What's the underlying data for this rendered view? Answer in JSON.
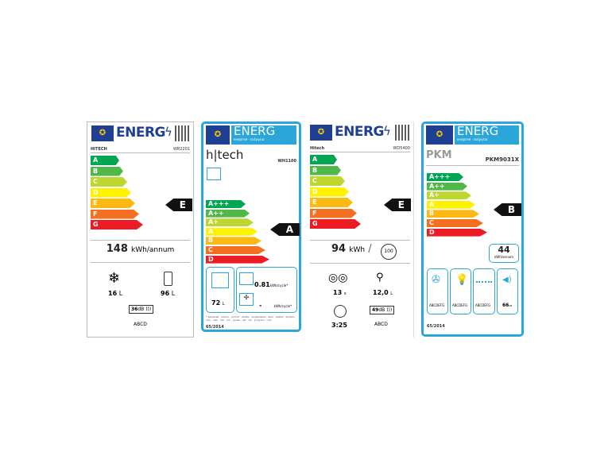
{
  "scale_colors": [
    "#00a651",
    "#50b848",
    "#bed630",
    "#fff200",
    "#fdb913",
    "#f37021",
    "#ed1c24"
  ],
  "labels": [
    {
      "energy_word": "ENERG",
      "brand": "HITECH",
      "model": "WR2201",
      "classes": [
        "A",
        "B",
        "C",
        "D",
        "E",
        "F",
        "G"
      ],
      "rating": "E",
      "consumption": "148",
      "consumption_unit": "kWh/annum",
      "freezer_volume": "16",
      "fridge_volume": "96",
      "volume_unit": "L",
      "noise": "36",
      "noise_unit": "dB",
      "noise_class": "ABCD"
    },
    {
      "energy_word": "ENERG",
      "energy_sub": "енергия · ενέργεια",
      "brand": "h|tech",
      "model": "WH1100",
      "classes": [
        "A+++",
        "A++",
        "A+",
        "A",
        "B",
        "C",
        "D"
      ],
      "rating": "A",
      "volume": "72",
      "volume_unit": "L",
      "conv_consumption": "0.81",
      "conv_unit": "kWh/cycle*",
      "fan_consumption": "-",
      "fan_unit": "kWh/cycle*",
      "footnote": "* ўдзіркай · ωείκεν · pomoč · αρίθω · ηρηφραφραι · вімс · watter · ekiptoo · olóu · sikn · dec · kiri · syslas · saf · raz · program · cakl",
      "regulation": "65/2014"
    },
    {
      "energy_word": "ENERG",
      "brand": "Hitech",
      "model": "WD5400",
      "classes": [
        "A",
        "B",
        "C",
        "D",
        "E",
        "F",
        "G"
      ],
      "rating": "E",
      "consumption": "94",
      "consumption_unit": "kWh",
      "cycles": "100",
      "place_settings": "13",
      "place_unit": "x",
      "water": "12,0",
      "water_unit": "L",
      "duration": "3:25",
      "noise": "49",
      "noise_unit": "dB",
      "noise_class": "ABCD"
    },
    {
      "energy_word": "ENERG",
      "energy_sub": "енергия · ενέργεια",
      "brand": "PKM",
      "model": "PKM9031X",
      "classes": [
        "A+++",
        "A++",
        "A+",
        "A",
        "B",
        "C",
        "D"
      ],
      "rating": "B",
      "consumption": "44",
      "consumption_unit": "kWh/annum",
      "fluid_class": "ABCDEFG",
      "lighting_class": "ABCDEFG",
      "grease_class": "ABCDEFG",
      "noise": "66",
      "noise_unit": "dB",
      "regulation": "65/2014"
    }
  ]
}
